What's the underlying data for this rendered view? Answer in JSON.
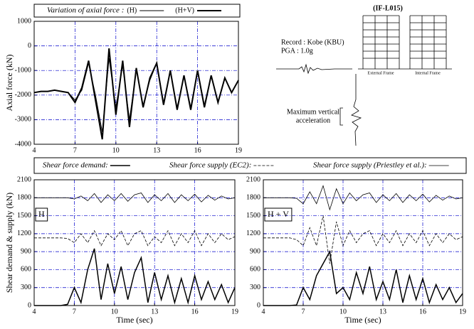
{
  "chart_data": [
    {
      "type": "line",
      "title": "Variation of axial force :",
      "ylabel": "Axial force (kN)",
      "x": [
        4,
        4.5,
        5,
        5.5,
        6,
        6.5,
        7,
        7.5,
        8,
        8.5,
        9,
        9.5,
        10,
        10.5,
        11,
        11.5,
        12,
        12.5,
        13,
        13.5,
        14,
        14.5,
        15,
        15.5,
        16,
        16.5,
        17,
        17.5,
        18,
        18.5,
        19
      ],
      "series": [
        {
          "name": "(H)",
          "color": "#000000",
          "width": 1,
          "dash": "solid",
          "values": [
            -1900,
            -1850,
            -1850,
            -1800,
            -1850,
            -1900,
            -2200,
            -1800,
            -700,
            -2000,
            -3500,
            -500,
            -2500,
            -800,
            -3000,
            -1000,
            -2400,
            -1400,
            -700,
            -2300,
            -1000,
            -2500,
            -1200,
            -2500,
            -1000,
            -2400,
            -1200,
            -2300,
            -1300,
            -1900,
            -1400
          ]
        },
        {
          "name": "(H+V)",
          "color": "#000000",
          "width": 2,
          "dash": "solid",
          "values": [
            -1900,
            -1850,
            -1850,
            -1800,
            -1850,
            -1900,
            -2300,
            -1700,
            -600,
            -2200,
            -3800,
            -100,
            -2800,
            -600,
            -3300,
            -900,
            -2500,
            -1300,
            -700,
            -2400,
            -1000,
            -2600,
            -1200,
            -2600,
            -1000,
            -2500,
            -1200,
            -2300,
            -1300,
            -1900,
            -1400
          ]
        }
      ],
      "xlim": [
        4,
        19
      ],
      "xticks": [
        4,
        7,
        10,
        13,
        16,
        19
      ],
      "ylim": [
        -4000,
        1000
      ],
      "yticks": [
        -4000,
        -3000,
        -2000,
        -1000,
        0,
        1000
      ],
      "grid": true,
      "grid_color": "#0000cc"
    },
    {
      "type": "line",
      "label": "H",
      "ylabel": "Shear demand & supply (kN)",
      "xlabel": "Time (sec)",
      "x": [
        4,
        4.5,
        5,
        5.5,
        6,
        6.5,
        7,
        7.5,
        8,
        8.5,
        9,
        9.5,
        10,
        10.5,
        11,
        11.5,
        12,
        12.5,
        13,
        13.5,
        14,
        14.5,
        15,
        15.5,
        16,
        16.5,
        17,
        17.5,
        18,
        18.5,
        19
      ],
      "series": [
        {
          "name": "Shear force demand:",
          "color": "#000000",
          "width": 1.5,
          "dash": "solid",
          "values": [
            0,
            0,
            0,
            0,
            0,
            20,
            300,
            50,
            600,
            950,
            100,
            700,
            200,
            650,
            100,
            550,
            800,
            50,
            550,
            100,
            500,
            50,
            450,
            50,
            500,
            100,
            400,
            100,
            350,
            50,
            300
          ]
        },
        {
          "name": "Shear force supply (EC2):",
          "color": "#000000",
          "width": 0.8,
          "dash": "4 2",
          "values": [
            1130,
            1130,
            1130,
            1130,
            1130,
            1120,
            1050,
            1200,
            1050,
            1250,
            1000,
            1200,
            1100,
            1250,
            1000,
            1200,
            1250,
            1000,
            1150,
            1050,
            1250,
            1000,
            1200,
            1050,
            1250,
            1000,
            1200,
            1050,
            1200,
            1100,
            1150
          ]
        },
        {
          "name": "Shear force supply (Priestley et al.):",
          "color": "#000000",
          "width": 0.8,
          "dash": "solid",
          "values": [
            1800,
            1800,
            1800,
            1800,
            1800,
            1800,
            1780,
            1830,
            1750,
            1870,
            1720,
            1850,
            1750,
            1870,
            1740,
            1850,
            1880,
            1720,
            1850,
            1750,
            1870,
            1720,
            1850,
            1750,
            1860,
            1730,
            1840,
            1760,
            1830,
            1780,
            1800
          ]
        }
      ],
      "xlim": [
        4,
        19
      ],
      "xticks": [
        4,
        7,
        10,
        13,
        16,
        19
      ],
      "ylim": [
        0,
        2100
      ],
      "yticks": [
        0,
        300,
        600,
        900,
        1200,
        1500,
        1800,
        2100
      ],
      "grid": true,
      "grid_color": "#0000cc"
    },
    {
      "type": "line",
      "label": "H + V",
      "xlabel": "Time (sec)",
      "x": [
        4,
        4.5,
        5,
        5.5,
        6,
        6.5,
        7,
        7.5,
        8,
        8.5,
        9,
        9.5,
        10,
        10.5,
        11,
        11.5,
        12,
        12.5,
        13,
        13.5,
        14,
        14.5,
        15,
        15.5,
        16,
        16.5,
        17,
        17.5,
        18,
        18.5,
        19
      ],
      "series": [
        {
          "color": "#000000",
          "width": 1.5,
          "dash": "solid",
          "values": [
            0,
            0,
            0,
            0,
            0,
            10,
            300,
            100,
            500,
            700,
            900,
            200,
            300,
            100,
            550,
            200,
            650,
            100,
            400,
            100,
            600,
            50,
            500,
            100,
            450,
            50,
            350,
            100,
            300,
            50,
            200
          ]
        },
        {
          "color": "#000000",
          "width": 0.8,
          "dash": "4 2",
          "values": [
            1130,
            1130,
            1130,
            1130,
            1130,
            1100,
            1000,
            1300,
            1000,
            1500,
            700,
            1400,
            1000,
            1250,
            1050,
            1200,
            1250,
            1000,
            1200,
            1050,
            1250,
            1000,
            1200,
            1050,
            1250,
            1000,
            1200,
            1050,
            1200,
            1100,
            1150
          ]
        },
        {
          "color": "#000000",
          "width": 0.8,
          "dash": "solid",
          "values": [
            1800,
            1800,
            1800,
            1800,
            1800,
            1790,
            1700,
            1900,
            1700,
            2000,
            1600,
            1950,
            1700,
            1880,
            1750,
            1850,
            1880,
            1720,
            1850,
            1750,
            1870,
            1720,
            1850,
            1750,
            1860,
            1730,
            1840,
            1760,
            1830,
            1780,
            1800
          ]
        }
      ],
      "xlim": [
        4,
        19
      ],
      "xticks": [
        4,
        7,
        10,
        13,
        16,
        19
      ],
      "ylim": [
        0,
        2100
      ],
      "yticks": [
        0,
        300,
        600,
        900,
        1200,
        1500,
        1800,
        2100
      ],
      "grid": true,
      "grid_color": "#0000cc"
    }
  ],
  "inset": {
    "code": "(IF-L015)",
    "record": "Record : Kobe (KBU)",
    "pga": "PGA   : 1.0g",
    "external": "External Frame",
    "internal": "Internal Frame",
    "vertical_1": "Maximum vertical",
    "vertical_2": "acceleration"
  }
}
